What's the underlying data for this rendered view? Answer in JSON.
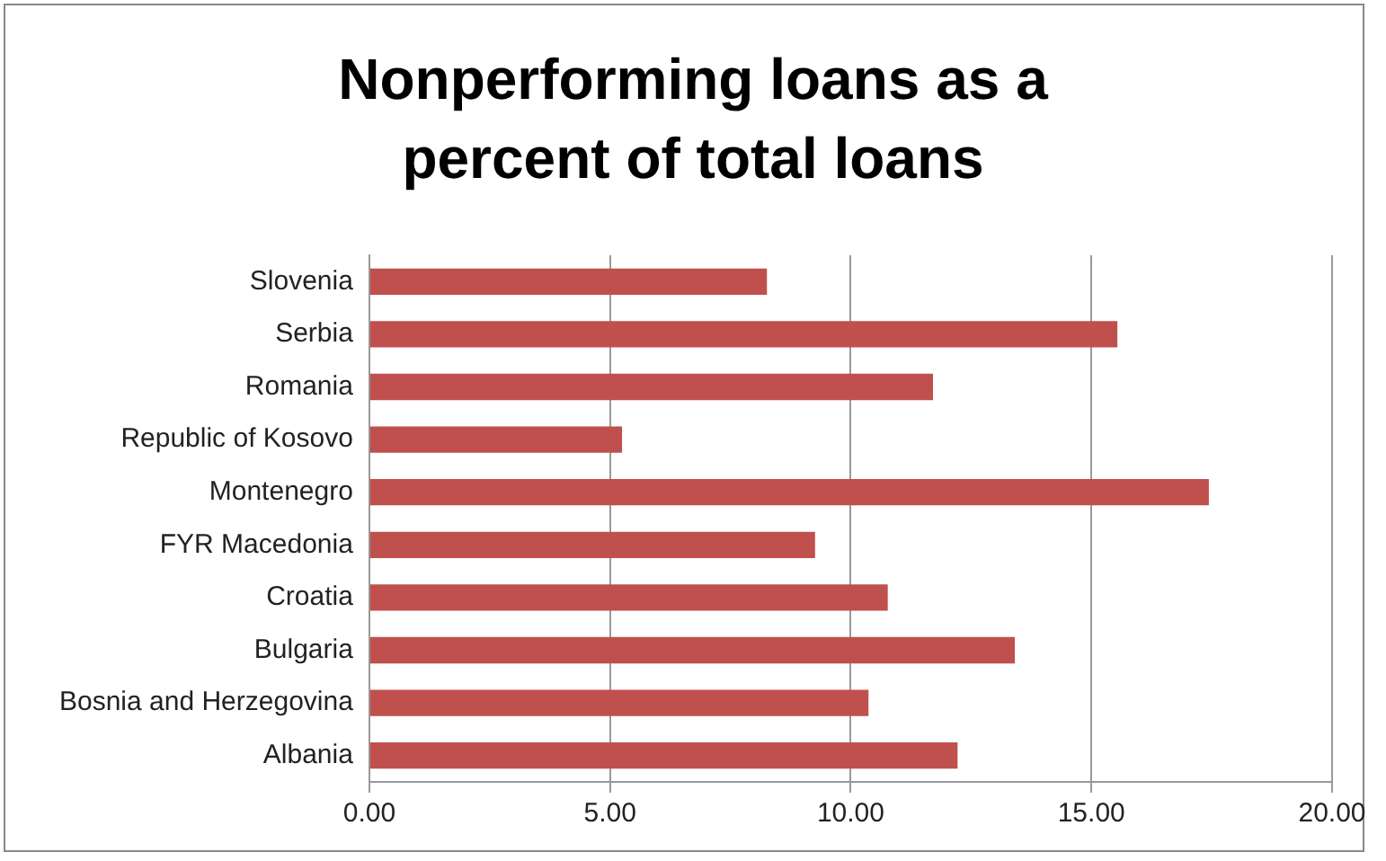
{
  "chart_data": {
    "type": "bar",
    "orientation": "horizontal",
    "title": "Nonperforming loans as a percent of total loans",
    "categories": [
      "Slovenia",
      "Serbia",
      "Romania",
      "Republic of Kosovo",
      "Montenegro",
      "FYR Macedonia",
      "Croatia",
      "Bulgaria",
      "Bosnia and Herzegovina",
      "Albania"
    ],
    "values": [
      8.26,
      15.54,
      11.71,
      5.25,
      17.44,
      9.26,
      10.77,
      13.41,
      10.37,
      12.22
    ],
    "color": "#c0504d",
    "xlim": [
      0,
      20
    ],
    "xticks": [
      {
        "value": 0,
        "label": "0.00"
      },
      {
        "value": 5,
        "label": "5.00"
      },
      {
        "value": 10,
        "label": "10.00"
      },
      {
        "value": 15,
        "label": "15.00"
      },
      {
        "value": 20,
        "label": "20.00"
      }
    ],
    "grid": "x",
    "legend": false
  }
}
